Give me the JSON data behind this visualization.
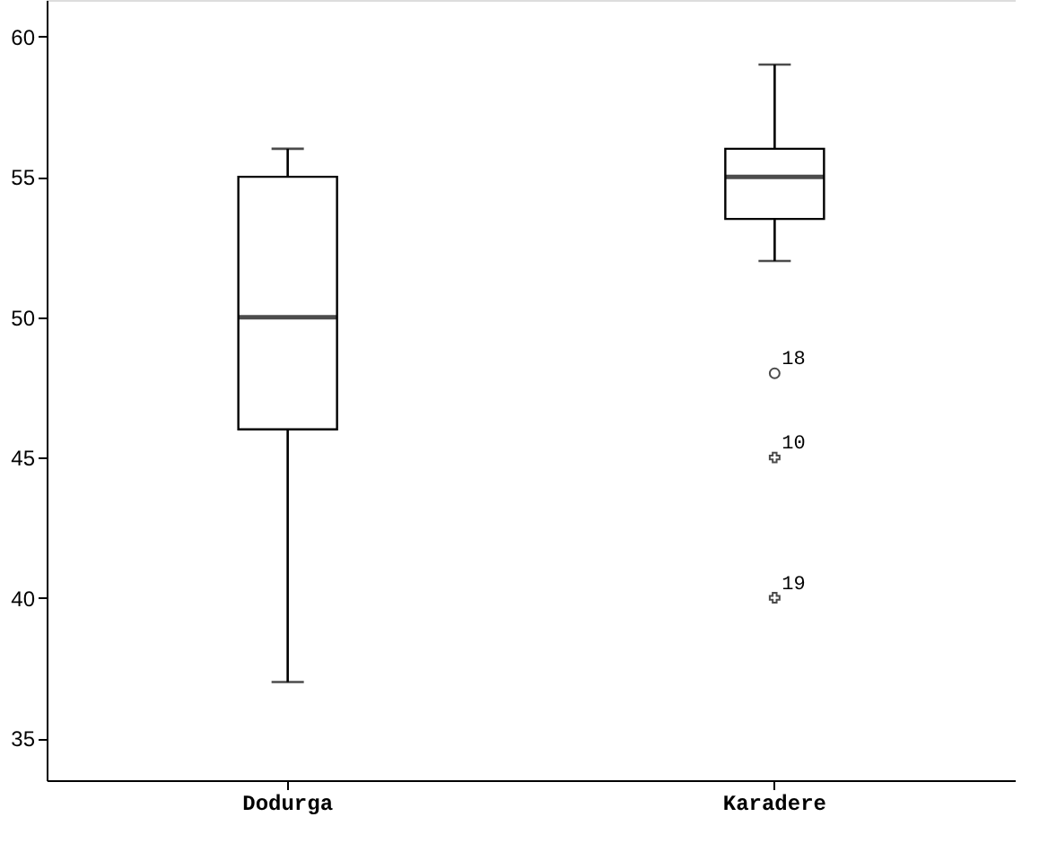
{
  "chart_data": {
    "type": "box",
    "categories": [
      "Dodurga",
      "Karadere"
    ],
    "boxes": [
      {
        "low": 37,
        "q1": 46,
        "median": 50,
        "q3": 55,
        "high": 56
      },
      {
        "low": 52,
        "q1": 53.5,
        "median": 55,
        "q3": 56,
        "high": 59,
        "outliers": [
          48,
          45,
          40
        ]
      }
    ],
    "ylim": [
      33.5,
      61.3
    ],
    "yticks": [
      35,
      40,
      45,
      50,
      55,
      60
    ],
    "grid": false,
    "annotations": [
      "18",
      "10",
      "19"
    ]
  }
}
